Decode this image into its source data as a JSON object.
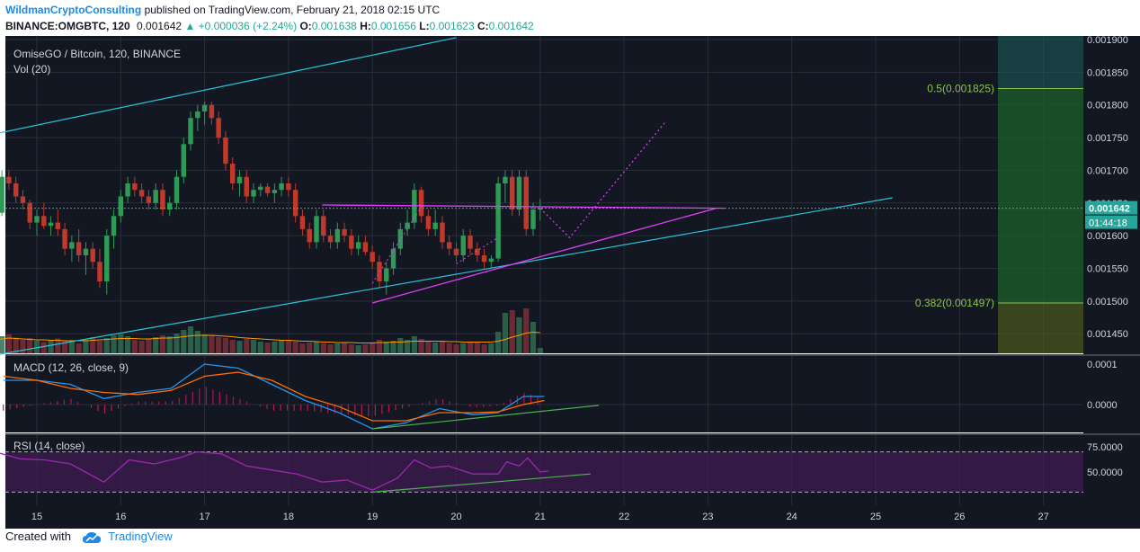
{
  "header": {
    "author": "WildmanCryptoConsulting",
    "published_text": "published on TradingView.com, February 21, 2018 02:15 UTC",
    "symbol": "BINANCE:OMGBTC, 120",
    "last": "0.001642",
    "change": "+0.000036 (+2.24%)",
    "o_label": "O:",
    "o_value": "0.001638",
    "h_label": "H:",
    "h_value": "0.001656",
    "l_label": "L:",
    "l_value": "0.001623",
    "c_label": "C:",
    "c_value": "0.001642"
  },
  "footer": {
    "created_with": "Created with",
    "brand": "TradingView"
  },
  "colors": {
    "background": "#131722",
    "grid": "#2a2e39",
    "up": "#2e9a56",
    "down": "#c0392b",
    "channel": "#26c6da",
    "magenta": "#e040fb",
    "fib_green": "#8bc34a",
    "macd": "#2196f3",
    "signal": "#ff6d00",
    "rsi": "#9c27b0",
    "trendline": "#4caf50"
  },
  "chart_data": {
    "type": "candlestick",
    "title": "OmiseGO / Bitcoin, 120, BINANCE",
    "volume_label": "Vol (20)",
    "x_ticks": [
      "15",
      "16",
      "17",
      "18",
      "19",
      "20",
      "21",
      "22",
      "23",
      "24",
      "25",
      "26",
      "27"
    ],
    "price_ticks": [
      "0.001900",
      "0.001850",
      "0.001800",
      "0.001750",
      "0.001700",
      "0.001650",
      "0.001600",
      "0.001550",
      "0.001500",
      "0.001450"
    ],
    "ylim": [
      0.00142,
      0.0019
    ],
    "last_price": "0.001642",
    "countdown": "01:44:18",
    "fib_levels": [
      {
        "label": "0.5(0.001825)",
        "value": 0.001825
      },
      {
        "label": "0.382(0.001497)",
        "value": 0.001497
      }
    ],
    "candles_start_day": 14.5,
    "candle_interval_hours": 2,
    "candles": [
      [
        0.00164,
        0.00165,
        0.001625,
        0.001635
      ],
      [
        0.001635,
        0.0017,
        0.00163,
        0.00169
      ],
      [
        0.00169,
        0.0017,
        0.00167,
        0.00168
      ],
      [
        0.00168,
        0.00169,
        0.00165,
        0.00166
      ],
      [
        0.00166,
        0.00167,
        0.00164,
        0.00165
      ],
      [
        0.00165,
        0.001655,
        0.00161,
        0.00162
      ],
      [
        0.00162,
        0.00164,
        0.0016,
        0.00163
      ],
      [
        0.00163,
        0.00165,
        0.00161,
        0.001615
      ],
      [
        0.001615,
        0.00163,
        0.0016,
        0.00162
      ],
      [
        0.00162,
        0.00164,
        0.0016,
        0.00161
      ],
      [
        0.00161,
        0.00162,
        0.00157,
        0.00158
      ],
      [
        0.00158,
        0.0016,
        0.00156,
        0.00159
      ],
      [
        0.00159,
        0.00161,
        0.00156,
        0.00157
      ],
      [
        0.00157,
        0.00159,
        0.00154,
        0.00158
      ],
      [
        0.00158,
        0.00159,
        0.00155,
        0.00156
      ],
      [
        0.00156,
        0.00158,
        0.00152,
        0.00153
      ],
      [
        0.00153,
        0.00161,
        0.00151,
        0.0016
      ],
      [
        0.0016,
        0.00164,
        0.00158,
        0.00163
      ],
      [
        0.00163,
        0.00167,
        0.00162,
        0.00166
      ],
      [
        0.00166,
        0.00169,
        0.00165,
        0.00168
      ],
      [
        0.00168,
        0.00169,
        0.00166,
        0.00167
      ],
      [
        0.00167,
        0.00168,
        0.00165,
        0.00166
      ],
      [
        0.00166,
        0.00167,
        0.00164,
        0.00165
      ],
      [
        0.00165,
        0.00168,
        0.00164,
        0.00167
      ],
      [
        0.00167,
        0.00168,
        0.00163,
        0.00164
      ],
      [
        0.00164,
        0.00166,
        0.00163,
        0.00165
      ],
      [
        0.00165,
        0.0017,
        0.00164,
        0.00169
      ],
      [
        0.00169,
        0.00175,
        0.00168,
        0.00174
      ],
      [
        0.00174,
        0.00179,
        0.00173,
        0.00178
      ],
      [
        0.00178,
        0.0018,
        0.00176,
        0.00179
      ],
      [
        0.00179,
        0.001805,
        0.00177,
        0.0018
      ],
      [
        0.0018,
        0.001805,
        0.00177,
        0.00178
      ],
      [
        0.00178,
        0.00179,
        0.00174,
        0.00175
      ],
      [
        0.00175,
        0.00176,
        0.0017,
        0.00171
      ],
      [
        0.00171,
        0.00172,
        0.00167,
        0.00168
      ],
      [
        0.00168,
        0.0017,
        0.00166,
        0.00169
      ],
      [
        0.00169,
        0.0017,
        0.00165,
        0.00166
      ],
      [
        0.00166,
        0.00168,
        0.00165,
        0.00167
      ],
      [
        0.00167,
        0.00168,
        0.00166,
        0.001675
      ],
      [
        0.001675,
        0.00168,
        0.00166,
        0.001665
      ],
      [
        0.001665,
        0.00168,
        0.00165,
        0.00167
      ],
      [
        0.00167,
        0.00169,
        0.00166,
        0.00168
      ],
      [
        0.00168,
        0.00169,
        0.00166,
        0.00167
      ],
      [
        0.00167,
        0.00168,
        0.00162,
        0.00163
      ],
      [
        0.00163,
        0.00164,
        0.0016,
        0.00161
      ],
      [
        0.00161,
        0.00162,
        0.00158,
        0.00159
      ],
      [
        0.00159,
        0.00164,
        0.00158,
        0.00163
      ],
      [
        0.00163,
        0.00164,
        0.00159,
        0.0016
      ],
      [
        0.0016,
        0.00161,
        0.00158,
        0.00159
      ],
      [
        0.00159,
        0.00162,
        0.00158,
        0.00161
      ],
      [
        0.00161,
        0.00162,
        0.00159,
        0.0016
      ],
      [
        0.0016,
        0.00161,
        0.00157,
        0.00158
      ],
      [
        0.00158,
        0.0016,
        0.00157,
        0.00159
      ],
      [
        0.00159,
        0.0016,
        0.00157,
        0.001575
      ],
      [
        0.001575,
        0.001585,
        0.00155,
        0.00156
      ],
      [
        0.00156,
        0.00157,
        0.00152,
        0.00153
      ],
      [
        0.00153,
        0.00156,
        0.00151,
        0.00155
      ],
      [
        0.00155,
        0.00159,
        0.00154,
        0.00158
      ],
      [
        0.00158,
        0.00162,
        0.00157,
        0.00161
      ],
      [
        0.00161,
        0.00164,
        0.0016,
        0.00162
      ],
      [
        0.00162,
        0.00168,
        0.00161,
        0.00167
      ],
      [
        0.00167,
        0.001675,
        0.00162,
        0.00163
      ],
      [
        0.00163,
        0.00164,
        0.0016,
        0.00161
      ],
      [
        0.00161,
        0.00164,
        0.0016,
        0.00162
      ],
      [
        0.00162,
        0.00163,
        0.00158,
        0.00159
      ],
      [
        0.00159,
        0.0016,
        0.00157,
        0.00158
      ],
      [
        0.00158,
        0.00159,
        0.00156,
        0.00157
      ],
      [
        0.00157,
        0.00161,
        0.00156,
        0.0016
      ],
      [
        0.0016,
        0.00161,
        0.00157,
        0.00158
      ],
      [
        0.00158,
        0.00159,
        0.00156,
        0.00157
      ],
      [
        0.00157,
        0.00158,
        0.00155,
        0.00156
      ],
      [
        0.00156,
        0.00157,
        0.00155,
        0.001565
      ],
      [
        0.001565,
        0.00169,
        0.00156,
        0.00168
      ],
      [
        0.00168,
        0.0017,
        0.00165,
        0.00169
      ],
      [
        0.00169,
        0.0017,
        0.00163,
        0.00164
      ],
      [
        0.00164,
        0.0017,
        0.00163,
        0.00169
      ],
      [
        0.00169,
        0.0017,
        0.0016,
        0.00161
      ],
      [
        0.00161,
        0.00165,
        0.0016,
        0.00164
      ],
      [
        0.00164,
        0.001656,
        0.001623,
        0.001642
      ]
    ],
    "volume": [
      40,
      38,
      42,
      35,
      30,
      34,
      28,
      25,
      30,
      33,
      28,
      26,
      22,
      30,
      36,
      28,
      34,
      40,
      42,
      38,
      30,
      28,
      32,
      36,
      40,
      38,
      44,
      52,
      60,
      50,
      42,
      40,
      36,
      34,
      30,
      28,
      32,
      30,
      26,
      24,
      26,
      28,
      30,
      26,
      22,
      24,
      26,
      22,
      20,
      22,
      24,
      20,
      18,
      20,
      22,
      30,
      26,
      28,
      34,
      30,
      38,
      32,
      28,
      24,
      26,
      22,
      20,
      22,
      26,
      24,
      20,
      22,
      48,
      90,
      96,
      80,
      100,
      70,
      12
    ],
    "volume_ma": [
      30,
      32,
      34,
      33,
      32,
      31,
      30,
      30,
      29,
      29,
      28,
      28,
      28,
      28,
      29,
      30,
      31,
      32,
      33,
      33,
      33,
      32,
      32,
      33,
      34,
      34,
      35,
      37,
      39,
      40,
      40,
      40,
      39,
      38,
      37,
      35,
      34,
      33,
      32,
      31,
      30,
      29,
      29,
      28,
      27,
      27,
      26,
      25,
      25,
      24,
      24,
      24,
      23,
      23,
      23,
      24,
      24,
      25,
      25,
      26,
      27,
      27,
      27,
      27,
      27,
      26,
      26,
      25,
      25,
      25,
      25,
      25,
      27,
      31,
      36,
      40,
      45,
      47,
      46
    ],
    "channel_upper": [
      [
        14.4,
        0.001753
      ],
      [
        20.0,
        0.001903
      ]
    ],
    "channel_lower": [
      [
        14.4,
        0.001415
      ],
      [
        25.2,
        0.001658
      ]
    ],
    "magenta_horizontal": [
      [
        18.4,
        0.001647
      ],
      [
        23.2,
        0.001642
      ]
    ],
    "magenta_support": [
      [
        19.0,
        0.001497
      ],
      [
        23.1,
        0.001642
      ]
    ],
    "magenta_projection": [
      [
        21.0,
        0.001642
      ],
      [
        21.35,
        0.001597
      ],
      [
        22.5,
        0.001775
      ]
    ],
    "magenta_dotted_left": [
      [
        19.0,
        0.001527
      ],
      [
        19.6,
        0.001647
      ]
    ],
    "magenta_dotted_mid": [
      [
        20.0,
        0.001557
      ],
      [
        20.5,
        0.001597
      ]
    ],
    "macd": {
      "label": "MACD (12, 26, close, 9)",
      "ticks": [
        "0.0001",
        "0.0000"
      ],
      "macd_line": [
        [
          14.6,
          6e-05
        ],
        [
          15.0,
          6e-05
        ],
        [
          15.4,
          5e-05
        ],
        [
          15.8,
          1.5e-05
        ],
        [
          16.2,
          3e-05
        ],
        [
          16.6,
          4e-05
        ],
        [
          17.0,
          0.0001
        ],
        [
          17.4,
          9e-05
        ],
        [
          17.8,
          5e-05
        ],
        [
          18.2,
          1e-05
        ],
        [
          18.6,
          -2e-05
        ],
        [
          19.0,
          -6e-05
        ],
        [
          19.4,
          -4.5e-05
        ],
        [
          19.8,
          -1e-05
        ],
        [
          20.2,
          -2.5e-05
        ],
        [
          20.5,
          -2e-05
        ],
        [
          20.8,
          2e-05
        ],
        [
          21.05,
          2e-05
        ]
      ],
      "signal_line": [
        [
          14.6,
          7e-05
        ],
        [
          15.0,
          6e-05
        ],
        [
          15.4,
          4e-05
        ],
        [
          15.8,
          3e-05
        ],
        [
          16.2,
          2.5e-05
        ],
        [
          16.6,
          3.5e-05
        ],
        [
          17.0,
          7e-05
        ],
        [
          17.4,
          8e-05
        ],
        [
          17.8,
          6e-05
        ],
        [
          18.2,
          2e-05
        ],
        [
          18.6,
          -5e-06
        ],
        [
          19.0,
          -4e-05
        ],
        [
          19.4,
          -4e-05
        ],
        [
          19.8,
          -2e-05
        ],
        [
          20.2,
          -2e-05
        ],
        [
          20.5,
          -1.8e-05
        ],
        [
          20.8,
          0.0
        ],
        [
          21.05,
          1e-05
        ]
      ],
      "trendline": [
        [
          19.0,
          -6e-05
        ],
        [
          21.7,
          -2e-06
        ]
      ]
    },
    "rsi": {
      "label": "RSI (14, close)",
      "ticks": [
        "75.0000",
        "50.0000"
      ],
      "levels": [
        70,
        30
      ],
      "line": [
        [
          14.5,
          70
        ],
        [
          14.8,
          63
        ],
        [
          15.1,
          62
        ],
        [
          15.4,
          58
        ],
        [
          15.8,
          40
        ],
        [
          16.1,
          62
        ],
        [
          16.4,
          58
        ],
        [
          16.7,
          64
        ],
        [
          16.9,
          70
        ],
        [
          17.2,
          68
        ],
        [
          17.5,
          56
        ],
        [
          17.8,
          52
        ],
        [
          18.1,
          48
        ],
        [
          18.4,
          40
        ],
        [
          18.7,
          42
        ],
        [
          19.0,
          32
        ],
        [
          19.3,
          44
        ],
        [
          19.5,
          62
        ],
        [
          19.7,
          54
        ],
        [
          19.9,
          56
        ],
        [
          20.2,
          48
        ],
        [
          20.5,
          48
        ],
        [
          20.6,
          60
        ],
        [
          20.75,
          56
        ],
        [
          20.85,
          64
        ],
        [
          21.0,
          50
        ],
        [
          21.1,
          51
        ]
      ],
      "trendline": [
        [
          19.0,
          30
        ],
        [
          21.6,
          48
        ]
      ]
    }
  }
}
